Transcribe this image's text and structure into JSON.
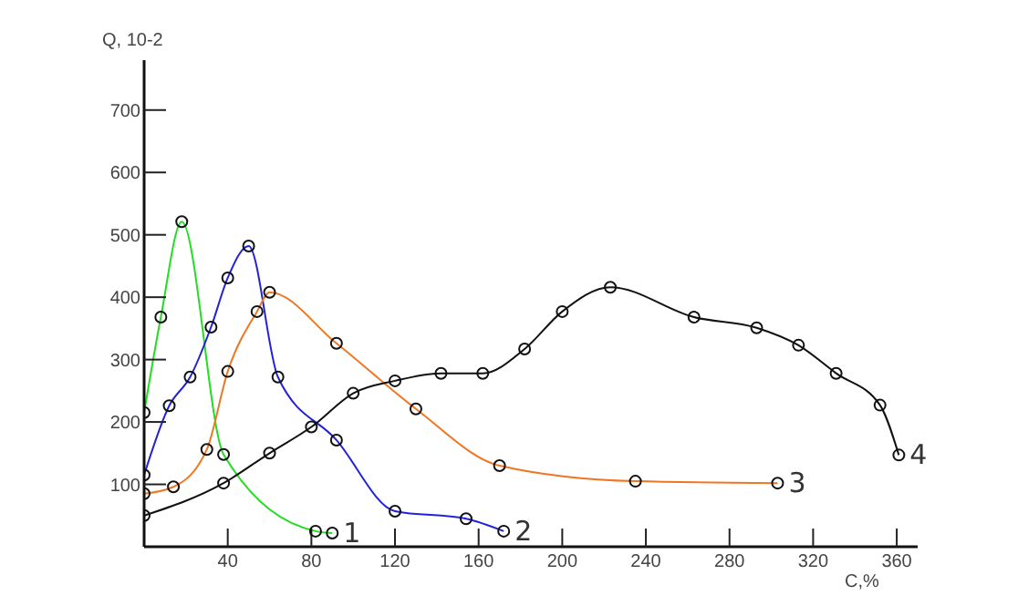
{
  "chart_data": {
    "type": "line",
    "xlabel": "C,%",
    "ylabel": "Q, 10-2",
    "xlim": [
      0,
      370
    ],
    "ylim": [
      0,
      780
    ],
    "xticks": [
      40,
      80,
      120,
      160,
      200,
      240,
      280,
      320,
      360
    ],
    "yticks": [
      100,
      200,
      300,
      400,
      500,
      600,
      700
    ],
    "grid": false,
    "marker": "circle",
    "line_style": "solid",
    "series": [
      {
        "name": "1",
        "color": "#22dd22",
        "x": [
          0,
          8,
          18,
          38,
          82,
          90
        ],
        "values": [
          215,
          368,
          521,
          148,
          25,
          22
        ]
      },
      {
        "name": "2",
        "color": "#2222dd",
        "x": [
          0,
          12,
          22,
          32,
          40,
          50,
          64,
          92,
          120,
          154,
          172
        ],
        "values": [
          115,
          226,
          272,
          352,
          431,
          482,
          272,
          171,
          57,
          45,
          25
        ]
      },
      {
        "name": "3",
        "color": "#ee7722",
        "x": [
          0,
          14,
          30,
          40,
          54,
          60,
          92,
          130,
          170,
          235,
          303
        ],
        "values": [
          85,
          96,
          156,
          281,
          377,
          408,
          326,
          221,
          130,
          105,
          102
        ]
      },
      {
        "name": "4",
        "color": "#111111",
        "x": [
          0,
          38,
          60,
          80,
          100,
          120,
          142,
          162,
          182,
          200,
          223,
          263,
          293,
          313,
          331,
          352,
          361
        ],
        "values": [
          50,
          102,
          150,
          192,
          246,
          266,
          278,
          278,
          317,
          377,
          416,
          368,
          351,
          323,
          278,
          227,
          147
        ]
      }
    ]
  }
}
